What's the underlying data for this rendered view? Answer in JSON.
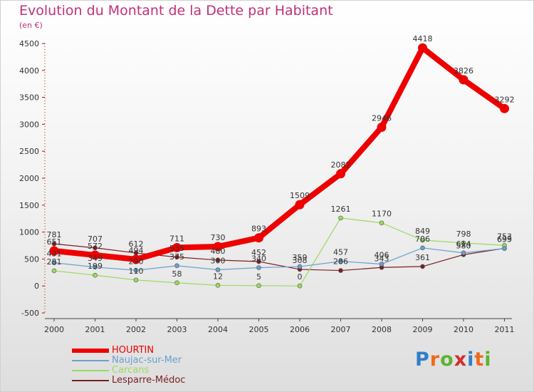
{
  "title": "Evolution du Montant de la Dette par Habitant",
  "subtitle": "(en €)",
  "brand": {
    "name": "Proxiti",
    "letters": [
      "P",
      "r",
      "o",
      "x",
      "i",
      "t",
      "i"
    ],
    "letter_colors": [
      "#2f7fc9",
      "#ef6a1c",
      "#5cb431",
      "#cf2f2f",
      "#2f7fc9",
      "#ef6a1c",
      "#5cb431"
    ]
  },
  "chart_data": {
    "type": "line",
    "title": "Evolution du Montant de la Dette par Habitant",
    "ylabel": "(en €)",
    "xlabel": "",
    "x": [
      "2000",
      "2001",
      "2002",
      "2003",
      "2004",
      "2005",
      "2006",
      "2007",
      "2008",
      "2009",
      "2010",
      "2011"
    ],
    "yticks": [
      "-500",
      "0",
      "500",
      "1000",
      "1500",
      "2000",
      "2500",
      "3000",
      "3500",
      "4000",
      "4500"
    ],
    "ylim": [
      -500,
      4500
    ],
    "grid": false,
    "legend_position": "bottom-left",
    "series": [
      {
        "name": "HOURTIN",
        "color": "#ee0000",
        "values": [
          651,
          572,
          494,
          711,
          730,
          893,
          1509,
          2082,
          2946,
          4418,
          3826,
          3292
        ],
        "labels": [
          "651",
          "572",
          "494",
          "711",
          "730",
          "893",
          "1509",
          "2082",
          "2946",
          "4418",
          "3826",
          "3292"
        ]
      },
      {
        "name": "Naujac-sur-Mer",
        "color": "#6aa0cc",
        "values": [
          431,
          349,
          290,
          375,
          300,
          340,
          359,
          457,
          406,
          706,
          614,
          695
        ],
        "labels": [
          "431",
          "349",
          "290",
          "375",
          "300",
          "340",
          "359",
          "457",
          "406",
          "706",
          "614",
          "695"
        ]
      },
      {
        "name": "Carcans",
        "color": "#9ad95e",
        "values": [
          281,
          199,
          110,
          58,
          12,
          5,
          0,
          1261,
          1170,
          849,
          798,
          753
        ],
        "labels": [
          "281",
          "199",
          "110",
          "58",
          "12",
          "5",
          "0",
          "1261",
          "1170",
          "849",
          "798",
          "753"
        ]
      },
      {
        "name": "Lesparre-Médoc",
        "color": "#7a1e22",
        "values": [
          781,
          707,
          612,
          535,
          480,
          452,
          308,
          286,
          343,
          361,
          580,
          699
        ],
        "labels": [
          "781",
          "707",
          "612",
          "535",
          "480",
          "452",
          "308",
          "286",
          "343",
          "361",
          "580",
          "699"
        ]
      }
    ]
  }
}
